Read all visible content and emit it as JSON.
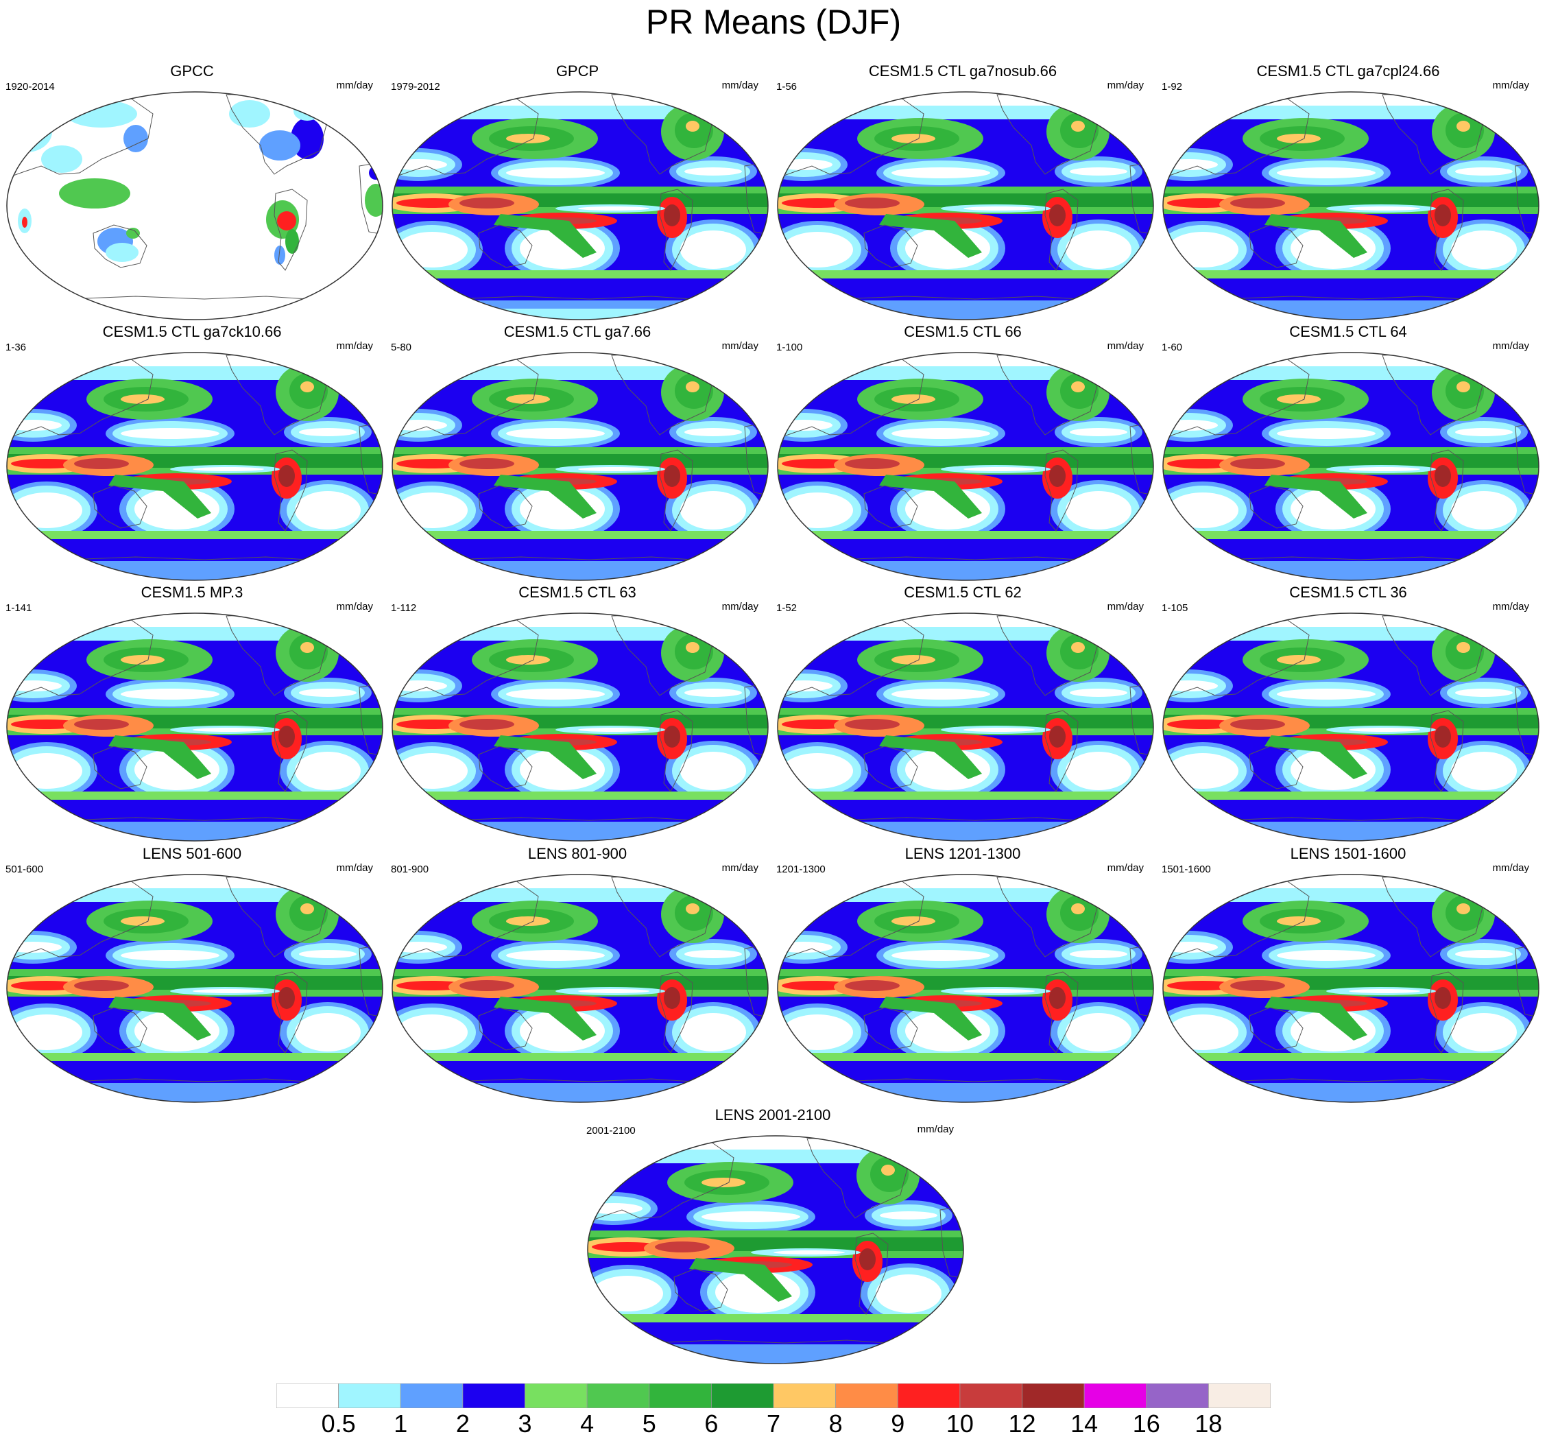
{
  "title": "PR Means (DJF)",
  "colors": {
    "land_outline": "#555555",
    "map_border": "#333333"
  },
  "chart_data": {
    "type": "heatmap",
    "title": "PR Means (DJF)",
    "projection": "robinson",
    "panels": [
      {
        "title": "GPCC",
        "period": "1920-2014",
        "units": "mm/day",
        "mode": "land"
      },
      {
        "title": "GPCP",
        "period": "1979-2012",
        "units": "mm/day",
        "mode": "obs"
      },
      {
        "title": "CESM1.5 CTL ga7nosub.66",
        "period": "1-56",
        "units": "mm/day",
        "mode": "model"
      },
      {
        "title": "CESM1.5 CTL ga7cpl24.66",
        "period": "1-92",
        "units": "mm/day",
        "mode": "model"
      },
      {
        "title": "CESM1.5 CTL ga7ck10.66",
        "period": "1-36",
        "units": "mm/day",
        "mode": "model"
      },
      {
        "title": "CESM1.5 CTL ga7.66",
        "period": "5-80",
        "units": "mm/day",
        "mode": "model"
      },
      {
        "title": "CESM1.5 CTL 66",
        "period": "1-100",
        "units": "mm/day",
        "mode": "model"
      },
      {
        "title": "CESM1.5 CTL 64",
        "period": "1-60",
        "units": "mm/day",
        "mode": "model"
      },
      {
        "title": "CESM1.5 MP.3",
        "period": "1-141",
        "units": "mm/day",
        "mode": "model"
      },
      {
        "title": "CESM1.5 CTL 63",
        "period": "1-112",
        "units": "mm/day",
        "mode": "model"
      },
      {
        "title": "CESM1.5 CTL 62",
        "period": "1-52",
        "units": "mm/day",
        "mode": "model"
      },
      {
        "title": "CESM1.5 CTL 36",
        "period": "1-105",
        "units": "mm/day",
        "mode": "model"
      },
      {
        "title": "LENS 501-600",
        "period": "501-600",
        "units": "mm/day",
        "mode": "model"
      },
      {
        "title": "LENS 801-900",
        "period": "801-900",
        "units": "mm/day",
        "mode": "model"
      },
      {
        "title": "LENS 1201-1300",
        "period": "1201-1300",
        "units": "mm/day",
        "mode": "model"
      },
      {
        "title": "LENS 1501-1600",
        "period": "1501-1600",
        "units": "mm/day",
        "mode": "model"
      },
      {
        "title": "LENS 2001-2100",
        "period": "2001-2100",
        "units": "mm/day",
        "mode": "model"
      }
    ],
    "colorbar": {
      "levels": [
        "0.5",
        "1",
        "2",
        "3",
        "4",
        "5",
        "6",
        "7",
        "8",
        "9",
        "10",
        "12",
        "14",
        "16",
        "18"
      ],
      "colors": [
        "#ffffff",
        "#a0f5ff",
        "#5fa0ff",
        "#1c00f0",
        "#78e060",
        "#50c850",
        "#32b43c",
        "#1e9b32",
        "#ffc864",
        "#ff8c46",
        "#ff2020",
        "#c83c3c",
        "#a02828",
        "#e600e6",
        "#9664c8",
        "#f8ede4"
      ]
    }
  }
}
